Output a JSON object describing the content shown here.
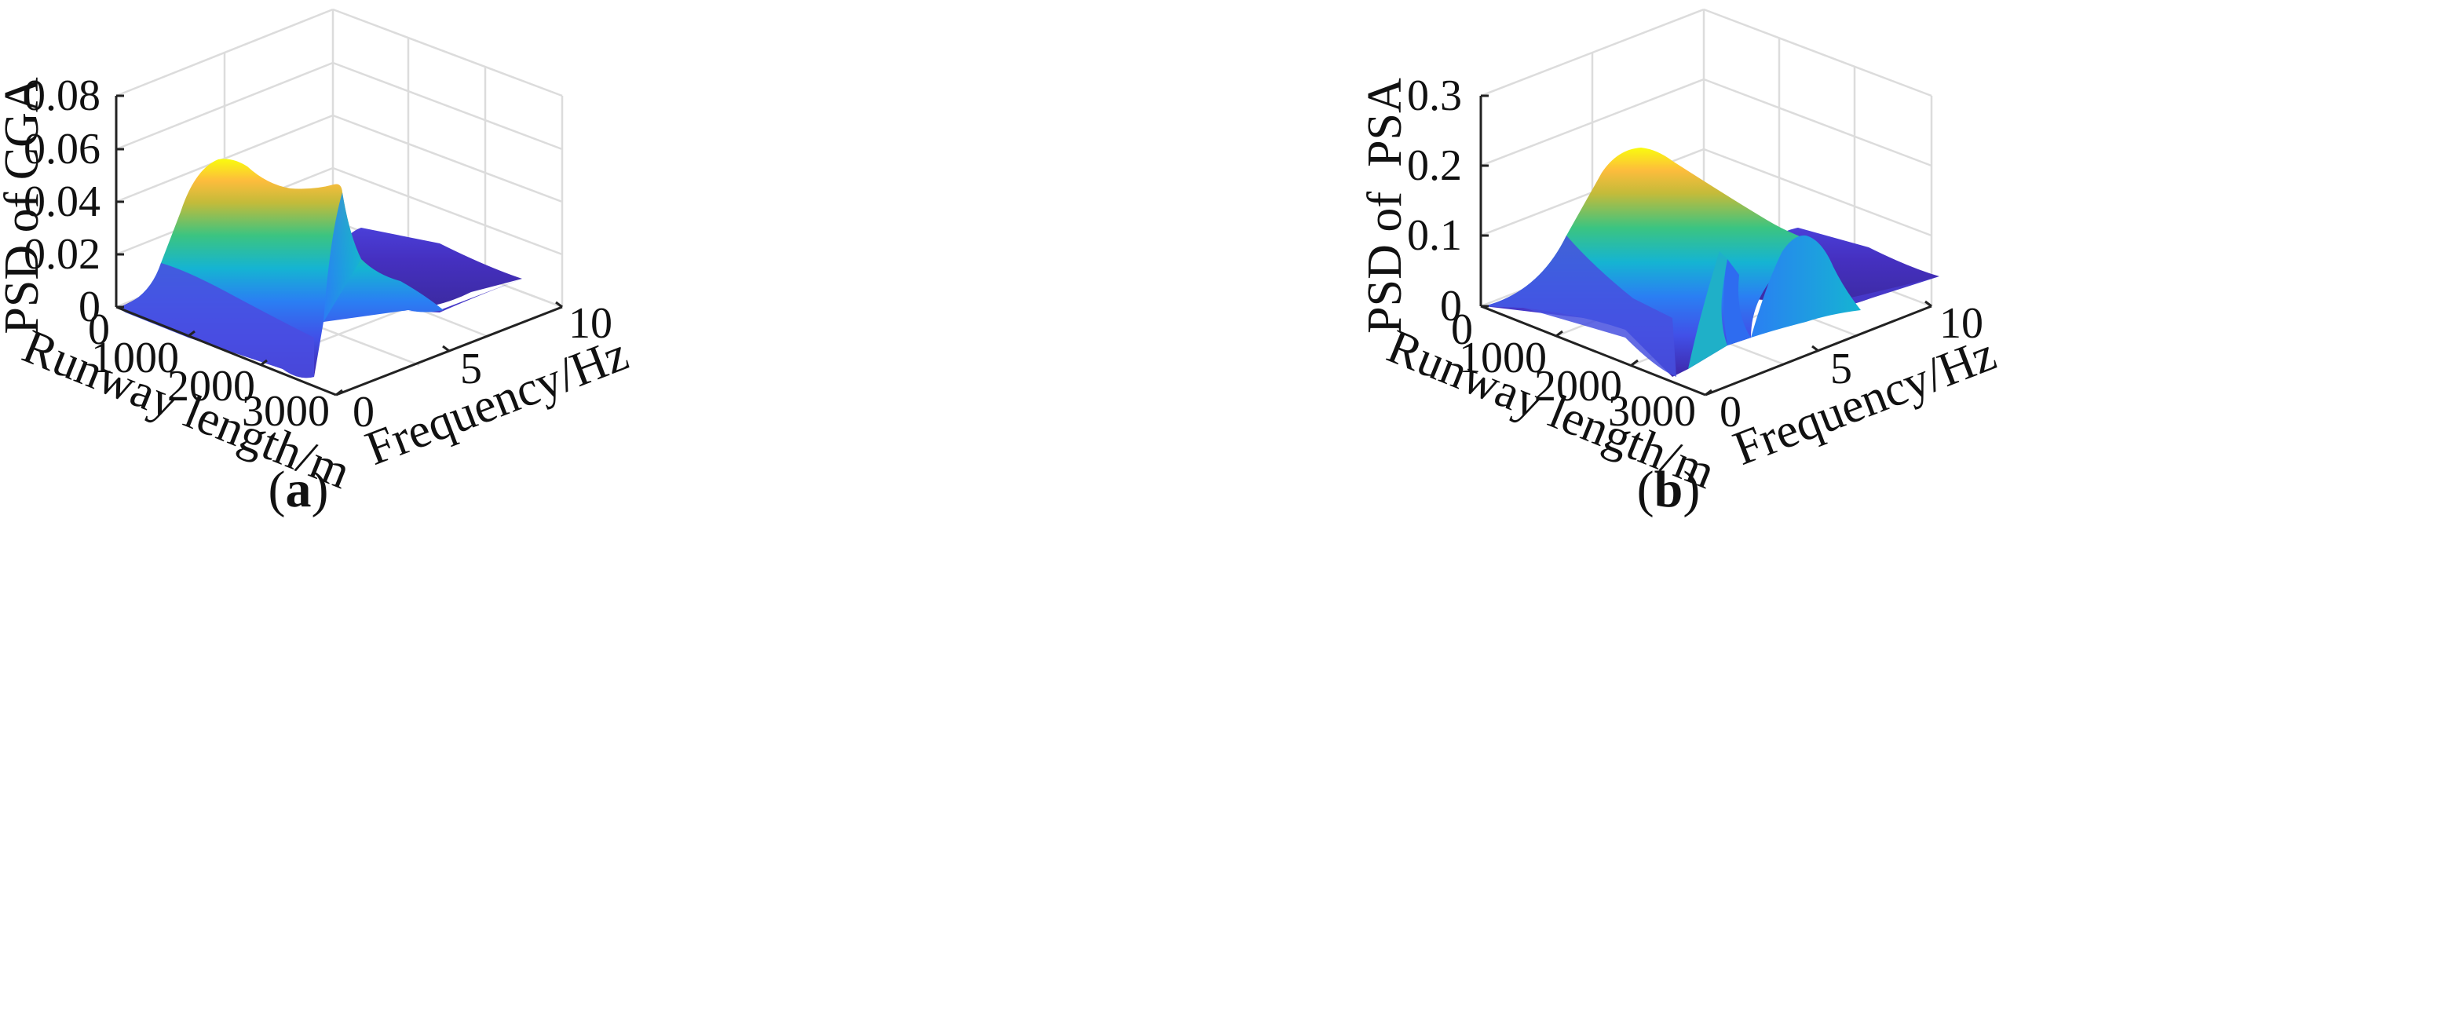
{
  "chart_data": [
    {
      "type": "surface",
      "panel_label": "(a)",
      "panel_letter": "a",
      "zlabel": "PSD of CGA",
      "xlabel": "Runway length/m",
      "ylabel": "Frequency/Hz",
      "xlim": [
        0,
        3000
      ],
      "ylim": [
        0,
        10
      ],
      "zlim": [
        0,
        0.08
      ],
      "xticks": [
        "0",
        "1000",
        "2000",
        "3000"
      ],
      "yticks": [
        "0",
        "5",
        "10"
      ],
      "zticks": [
        "0",
        "0.02",
        "0.04",
        "0.06",
        "0.08"
      ],
      "grid": true,
      "colormap": "parula",
      "surface_description": {
        "main_peak": {
          "frequency_hz": 1.5,
          "psd_at_start": 0.0,
          "psd_max": 0.056,
          "runway_length_m_at_max": 1300
        },
        "end_peak_psd": 0.05,
        "secondary_ridge_psd": 0.012
      }
    },
    {
      "type": "surface",
      "panel_label": "(b)",
      "panel_letter": "b",
      "zlabel": "PSD of  PSA",
      "xlabel": "Runway length/m",
      "ylabel": "Frequency/Hz",
      "xlim": [
        0,
        3000
      ],
      "ylim": [
        0,
        10
      ],
      "zlim": [
        0,
        0.3
      ],
      "xticks": [
        "0",
        "1000",
        "2000",
        "3000"
      ],
      "yticks": [
        "0",
        "5",
        "10"
      ],
      "zticks": [
        "0",
        "0.1",
        "0.2",
        "0.3"
      ],
      "grid": true,
      "colormap": "parula",
      "surface_description": {
        "main_peak": {
          "frequency_hz": 1.5,
          "psd_max": 0.21,
          "runway_length_m_at_max": 1000
        },
        "second_peak": {
          "frequency_hz": 4.0,
          "psd_max": 0.1
        }
      }
    }
  ]
}
